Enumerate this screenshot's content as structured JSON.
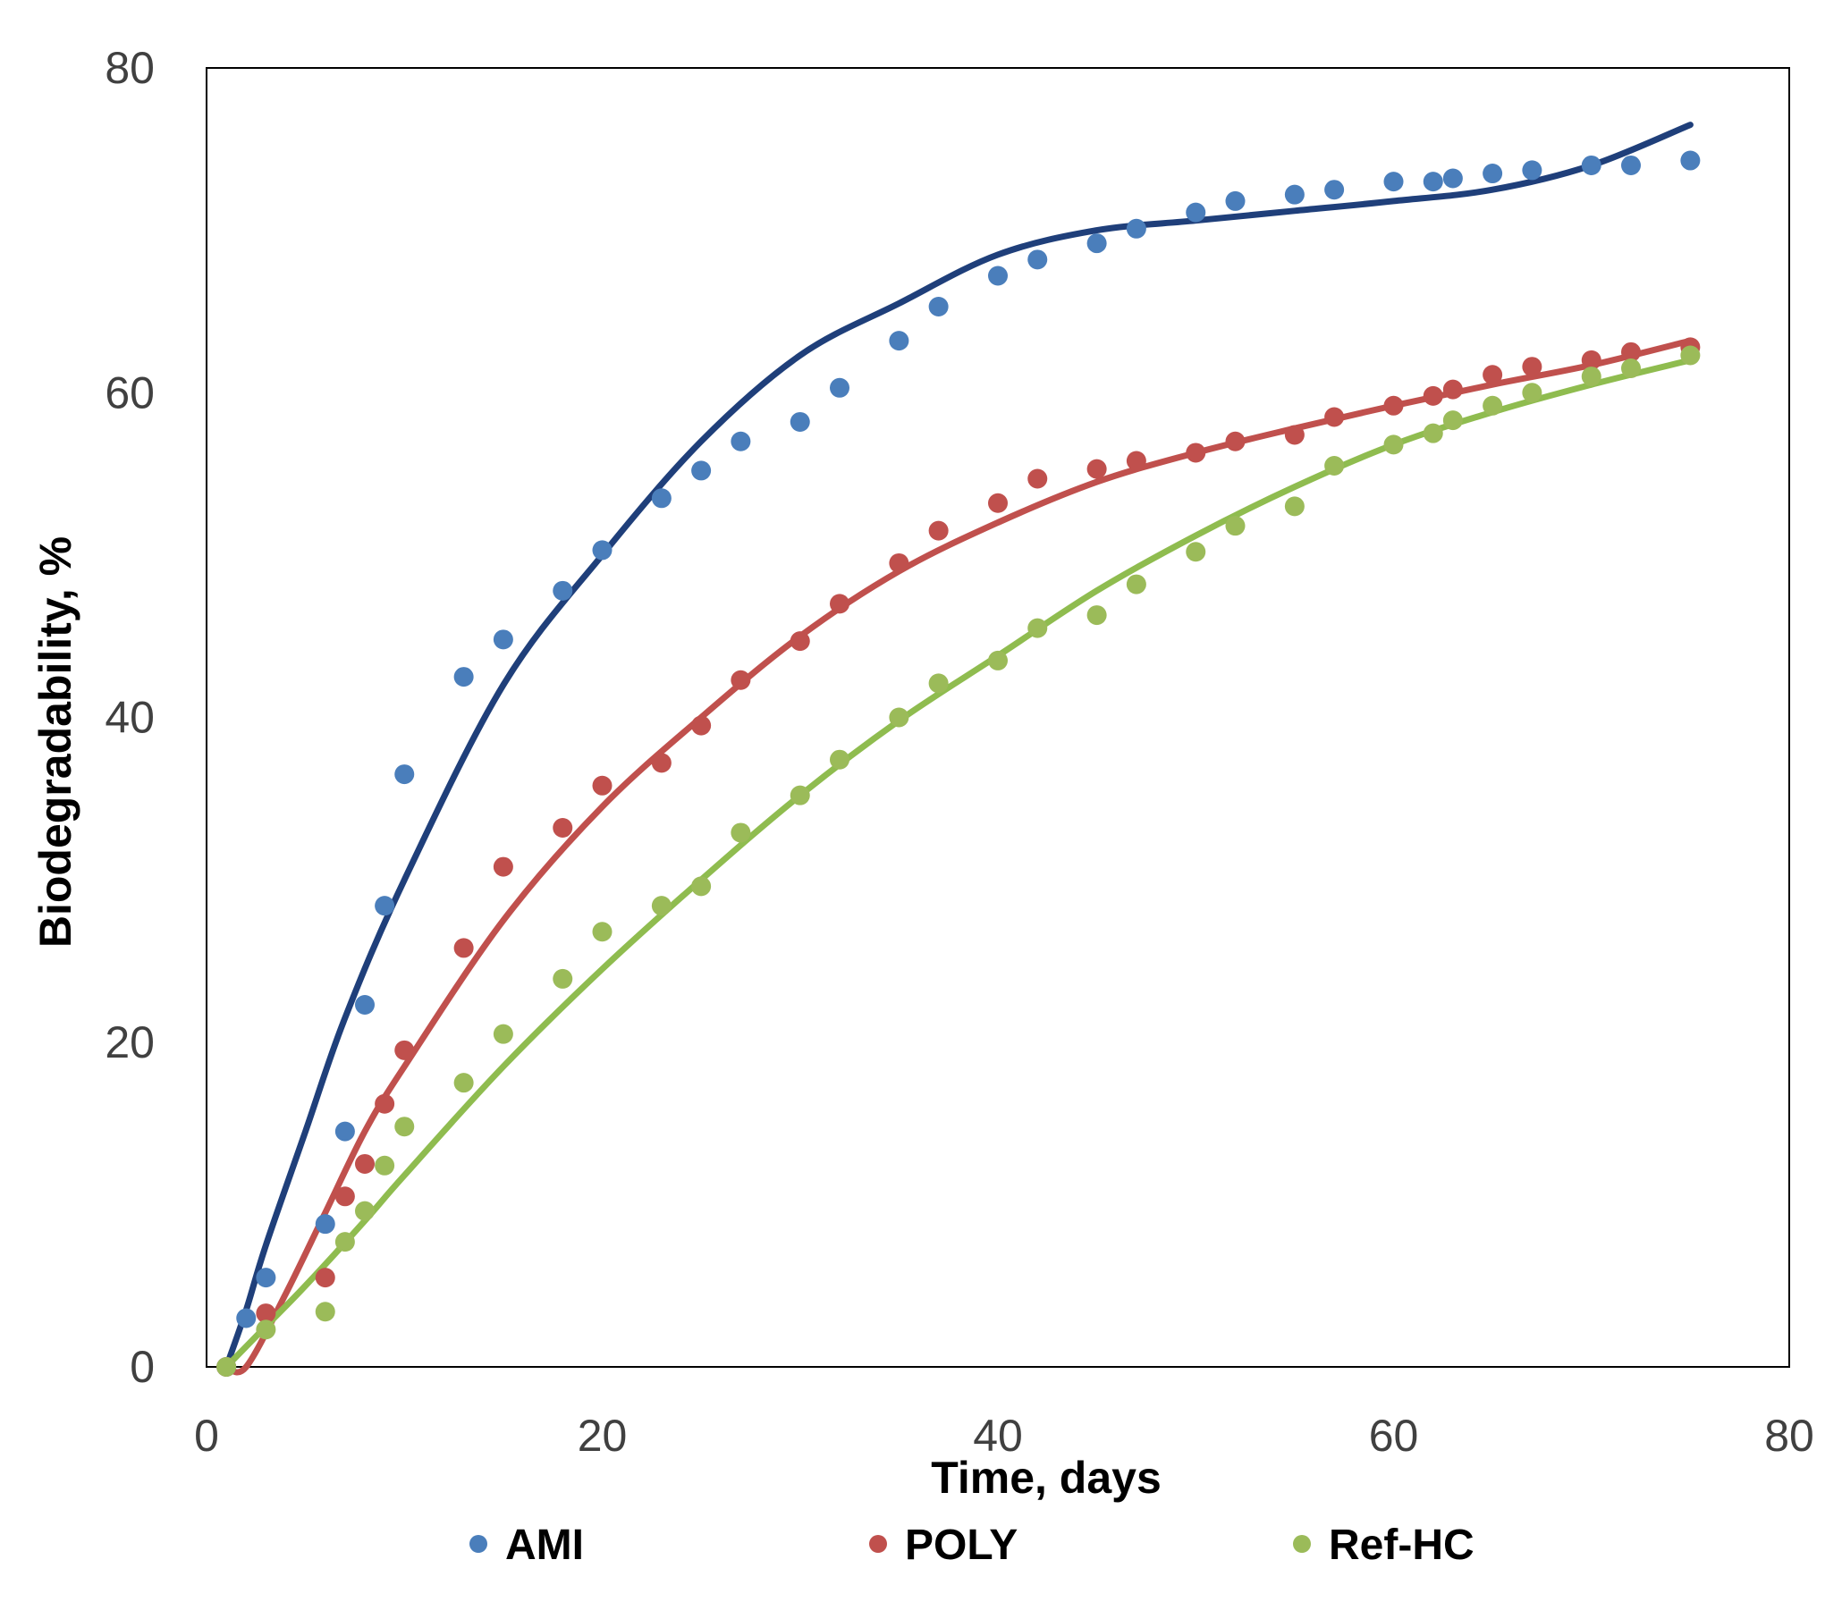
{
  "chart_data": {
    "type": "scatter",
    "title": "",
    "xlabel": "Time, days",
    "ylabel": "Biodegradability, %",
    "xlim": [
      0,
      80
    ],
    "ylim": [
      0,
      80
    ],
    "xticks": [
      "0",
      "20",
      "40",
      "60",
      "80"
    ],
    "yticks": [
      "0",
      "20",
      "40",
      "60",
      "80"
    ],
    "xtick_values": [
      0,
      20,
      40,
      60,
      80
    ],
    "ytick_values": [
      0,
      20,
      40,
      60,
      80
    ],
    "grid": false,
    "legend_position": "bottom",
    "series": [
      {
        "name": "AMI",
        "marker_color": "#4a7ebb",
        "line_color": "#1f3f7a",
        "x": [
          1,
          2,
          3,
          6,
          7,
          8,
          9,
          10,
          13,
          15,
          18,
          20,
          23,
          25,
          27,
          30,
          32,
          35,
          37,
          40,
          42,
          45,
          47,
          50,
          52,
          55,
          57,
          60,
          62,
          63,
          65,
          67,
          70,
          72,
          75
        ],
        "y": [
          0,
          3,
          5.5,
          8.8,
          14.5,
          22.3,
          28.4,
          36.5,
          42.5,
          44.8,
          47.8,
          50.3,
          53.5,
          55.2,
          57,
          58.2,
          60.3,
          63.2,
          65.3,
          67.2,
          68.2,
          69.2,
          70.1,
          71.1,
          71.8,
          72.2,
          72.5,
          73,
          73,
          73.2,
          73.5,
          73.7,
          74,
          74,
          74.3
        ],
        "fit_x": [
          1,
          2,
          3,
          5,
          7,
          10,
          15,
          20,
          25,
          30,
          35,
          40,
          45,
          50,
          55,
          60,
          65,
          70,
          75
        ],
        "fit_y": [
          0,
          3.5,
          7.5,
          14.5,
          21.5,
          30,
          42,
          50,
          57,
          62.3,
          65.5,
          68.5,
          70,
          70.6,
          71.2,
          71.8,
          72.5,
          74,
          76.5
        ]
      },
      {
        "name": "POLY",
        "marker_color": "#c0504d",
        "line_color": "#c0504d",
        "x": [
          1,
          3,
          6,
          7,
          8,
          9,
          10,
          13,
          15,
          18,
          20,
          23,
          25,
          27,
          30,
          32,
          35,
          37,
          40,
          42,
          45,
          47,
          50,
          52,
          55,
          57,
          60,
          62,
          63,
          65,
          67,
          70,
          72,
          75
        ],
        "y": [
          0,
          3.3,
          5.5,
          10.5,
          12.5,
          16.2,
          19.5,
          25.8,
          30.8,
          33.2,
          35.8,
          37.2,
          39.5,
          42.3,
          44.7,
          47,
          49.5,
          51.5,
          53.2,
          54.7,
          55.3,
          55.8,
          56.3,
          57,
          57.4,
          58.5,
          59.2,
          59.8,
          60.2,
          61.1,
          61.6,
          62,
          62.5,
          62.8
        ],
        "fit_x": [
          1,
          2,
          4,
          6,
          8,
          10,
          15,
          20,
          25,
          30,
          35,
          40,
          45,
          50,
          55,
          60,
          65,
          70,
          75
        ],
        "fit_y": [
          0,
          0,
          4.5,
          9.5,
          14.5,
          18.5,
          27.5,
          34.5,
          40,
          45,
          49,
          52,
          54.5,
          56.3,
          57.8,
          59.2,
          60.5,
          61.7,
          63.2
        ]
      },
      {
        "name": "Ref-HC",
        "marker_color": "#9bbb59",
        "line_color": "#8fbc4f",
        "x": [
          1,
          3,
          6,
          7,
          8,
          9,
          10,
          13,
          15,
          18,
          20,
          23,
          25,
          27,
          30,
          32,
          35,
          37,
          40,
          42,
          45,
          47,
          50,
          52,
          55,
          57,
          60,
          62,
          63,
          65,
          67,
          70,
          72,
          75
        ],
        "y": [
          0,
          2.3,
          3.4,
          7.7,
          9.6,
          12.4,
          14.8,
          17.5,
          20.5,
          23.9,
          26.8,
          28.4,
          29.6,
          32.9,
          35.2,
          37.4,
          40,
          42.1,
          43.5,
          45.5,
          46.3,
          48.2,
          50.2,
          51.8,
          53,
          55.5,
          56.8,
          57.5,
          58.3,
          59.2,
          60,
          61,
          61.5,
          62.3
        ],
        "fit_x": [
          1,
          3,
          5,
          8,
          10,
          15,
          20,
          25,
          30,
          35,
          40,
          45,
          50,
          55,
          60,
          65,
          70,
          75
        ],
        "fit_y": [
          0,
          2.5,
          5,
          9,
          11.8,
          18.5,
          24.5,
          30,
          35.2,
          39.8,
          43.8,
          47.8,
          51.2,
          54.2,
          56.8,
          58.8,
          60.5,
          62
        ]
      }
    ]
  }
}
